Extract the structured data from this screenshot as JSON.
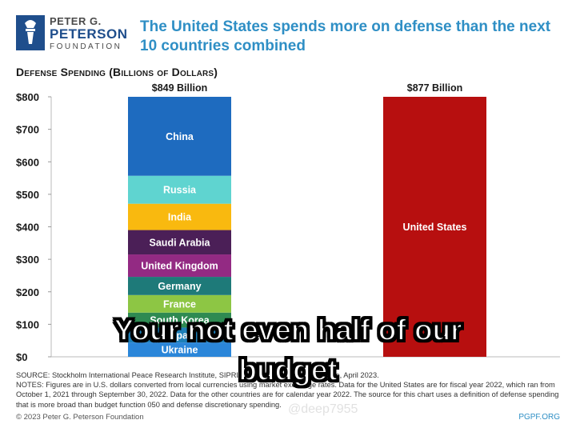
{
  "header": {
    "logo_line1": "PETER G.",
    "logo_line2": "PETERSON",
    "logo_line3": "FOUNDATION",
    "title": "The United States spends more on defense than the next 10 countries combined"
  },
  "subhead": "Defense Spending (Billions of Dollars)",
  "chart_data": {
    "type": "bar",
    "stacked": true,
    "ylim": [
      0,
      800
    ],
    "yticks": [
      "$0",
      "$100",
      "$200",
      "$300",
      "$400",
      "$500",
      "$600",
      "$700",
      "$800"
    ],
    "ytick_values": [
      0,
      100,
      200,
      300,
      400,
      500,
      600,
      700,
      800
    ],
    "grid": false,
    "bars": [
      {
        "total_label": "$849 Billion",
        "segments": [
          {
            "name": "Ukraine",
            "value": 44,
            "color": "#2b86d9"
          },
          {
            "name": "Japan",
            "value": 46,
            "color": "#1d7fb8"
          },
          {
            "name": "South Korea",
            "value": 46,
            "color": "#2e8a52"
          },
          {
            "name": "France",
            "value": 54,
            "color": "#8dc644"
          },
          {
            "name": "Germany",
            "value": 56,
            "color": "#1e7a79"
          },
          {
            "name": "United Kingdom",
            "value": 69,
            "color": "#932a83"
          },
          {
            "name": "Saudi Arabia",
            "value": 75,
            "color": "#4b1f57"
          },
          {
            "name": "India",
            "value": 81,
            "color": "#f9b90f"
          },
          {
            "name": "Russia",
            "value": 86,
            "color": "#5fd4d0"
          },
          {
            "name": "China",
            "value": 292,
            "color": "#1e6bbf"
          }
        ]
      },
      {
        "total_label": "$877 Billion",
        "segments": [
          {
            "name": "United States",
            "value": 877,
            "color": "#b70f0f"
          }
        ]
      }
    ]
  },
  "footer": {
    "source": "SOURCE: Stockholm International Peace Research Institute, SIPRI Military Expenditure Database, April 2023.",
    "notes": "NOTES: Figures are in U.S. dollars converted from local currencies using market exchange rates. Data for the United States are for fiscal year 2022, which ran from October 1, 2021 through September 30, 2022. Data for the other countries are for calendar year 2022. The source for this chart uses a definition of defense spending that is more broad than budget function 050 and defense discretionary spending.",
    "copyright": "© 2023 Peter G. Peterson Foundation",
    "site": "PGPF.ORG"
  },
  "watermark": "@deep7955",
  "caption": {
    "line1": "Your not even half of our",
    "line2": "budget"
  }
}
